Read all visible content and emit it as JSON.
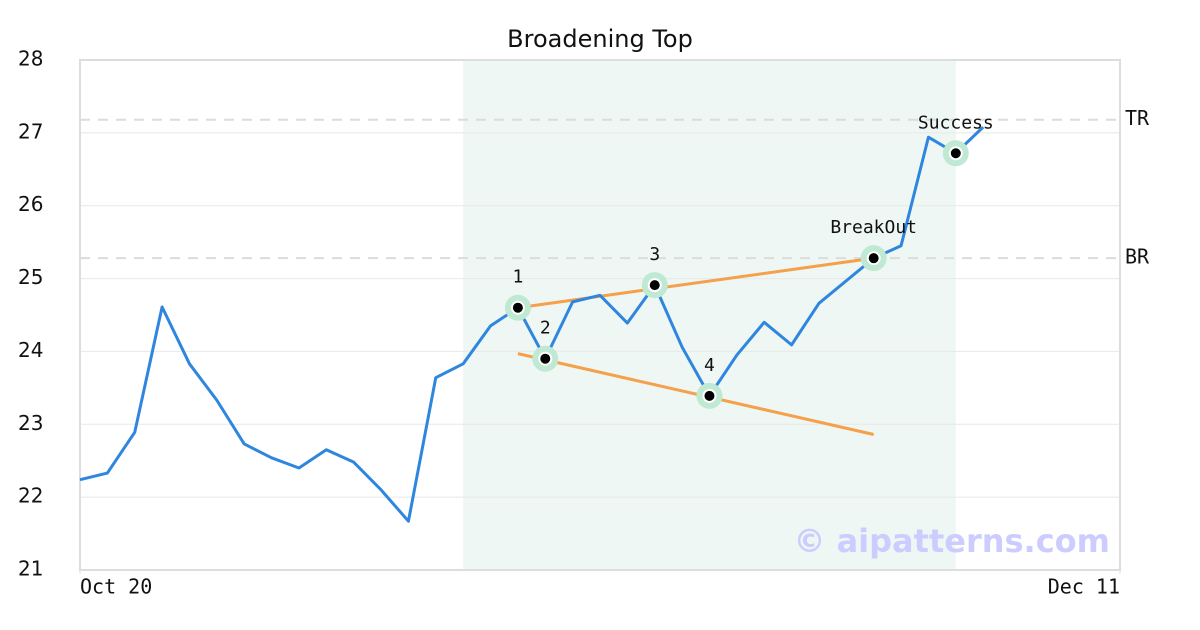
{
  "chart_data": {
    "type": "line",
    "title": "Broadening Top",
    "x": [
      0,
      1,
      2,
      3,
      4,
      5,
      6,
      7,
      8,
      9,
      10,
      11,
      12,
      13,
      14,
      15,
      16,
      17,
      18,
      19,
      20,
      21,
      22,
      23,
      24,
      25,
      26,
      27,
      28,
      29,
      30,
      31,
      32,
      33
    ],
    "series": [
      {
        "color": "#2e86de",
        "values": [
          22.24,
          22.33,
          22.89,
          24.61,
          23.83,
          23.33,
          22.73,
          22.54,
          22.4,
          22.65,
          22.48,
          22.1,
          21.67,
          23.64,
          23.83,
          24.35,
          24.6,
          23.9,
          24.68,
          24.77,
          24.39,
          24.91,
          24.06,
          23.39,
          23.95,
          24.4,
          24.09,
          24.66,
          24.97,
          25.28,
          25.45,
          26.94,
          26.72,
          27.08
        ]
      }
    ],
    "xlim": [
      0,
      38
    ],
    "xticks": [
      {
        "value": 0,
        "label": "Oct 20"
      },
      {
        "value": 38,
        "label": "Dec 11"
      }
    ],
    "ylim": [
      21,
      28
    ],
    "yticks": [
      21,
      22,
      23,
      24,
      25,
      26,
      27,
      28
    ],
    "grid": true,
    "band": {
      "x0": 14,
      "x1": 32,
      "color": "#eef7f3"
    },
    "markers": [
      {
        "x": 16,
        "value": 24.6,
        "label": "1"
      },
      {
        "x": 17,
        "value": 23.9,
        "label": "2"
      },
      {
        "x": 21,
        "value": 24.91,
        "label": "3"
      },
      {
        "x": 23,
        "value": 23.39,
        "label": "4"
      },
      {
        "x": 29,
        "value": 25.28,
        "label": "BreakOut"
      },
      {
        "x": 32,
        "value": 26.72,
        "label": "Success"
      }
    ],
    "trendlines": [
      {
        "x": [
          16,
          29
        ],
        "values": [
          24.6,
          25.28
        ],
        "color": "#f5a04a"
      },
      {
        "x": [
          16,
          29
        ],
        "values": [
          23.97,
          22.86
        ],
        "color": "#f5a04a"
      }
    ],
    "hlines": [
      {
        "value": 27.18,
        "label": "TR"
      },
      {
        "value": 25.28,
        "label": "BR"
      }
    ],
    "watermark": "© aipatterns.com"
  }
}
